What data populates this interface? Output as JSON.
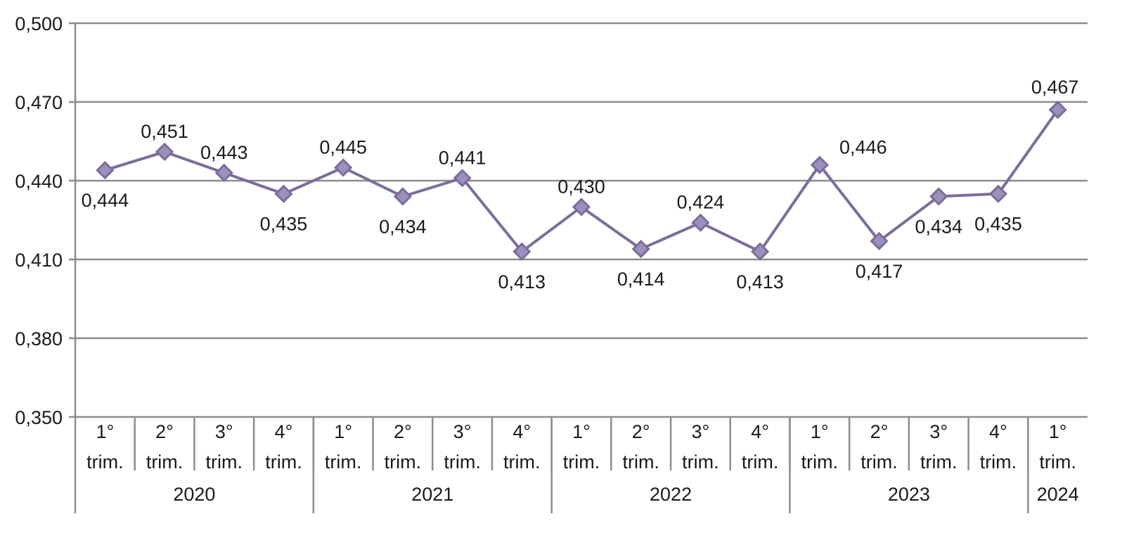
{
  "chart_data": {
    "type": "line",
    "y_ticks": [
      "0,350",
      "0,380",
      "0,410",
      "0,440",
      "0,470",
      "0,500"
    ],
    "ylim": [
      0.35,
      0.5
    ],
    "grid": true,
    "legend": "none",
    "line_color": "#7c6d9a",
    "marker_fill": "#9d8fbd",
    "categories": [
      {
        "q_num": "1°",
        "q_word": "trim."
      },
      {
        "q_num": "2°",
        "q_word": "trim."
      },
      {
        "q_num": "3°",
        "q_word": "trim."
      },
      {
        "q_num": "4°",
        "q_word": "trim."
      },
      {
        "q_num": "1°",
        "q_word": "trim."
      },
      {
        "q_num": "2°",
        "q_word": "trim."
      },
      {
        "q_num": "3°",
        "q_word": "trim."
      },
      {
        "q_num": "4°",
        "q_word": "trim."
      },
      {
        "q_num": "1°",
        "q_word": "trim."
      },
      {
        "q_num": "2°",
        "q_word": "trim."
      },
      {
        "q_num": "3°",
        "q_word": "trim."
      },
      {
        "q_num": "4°",
        "q_word": "trim."
      },
      {
        "q_num": "1°",
        "q_word": "trim."
      },
      {
        "q_num": "2°",
        "q_word": "trim."
      },
      {
        "q_num": "3°",
        "q_word": "trim."
      },
      {
        "q_num": "4°",
        "q_word": "trim."
      },
      {
        "q_num": "1°",
        "q_word": "trim."
      }
    ],
    "years": [
      {
        "label": "2020",
        "span": 4
      },
      {
        "label": "2021",
        "span": 4
      },
      {
        "label": "2022",
        "span": 4
      },
      {
        "label": "2023",
        "span": 4
      },
      {
        "label": "2024",
        "span": 1
      }
    ],
    "values": [
      0.444,
      0.451,
      0.443,
      0.435,
      0.445,
      0.434,
      0.441,
      0.413,
      0.43,
      0.414,
      0.424,
      0.413,
      0.446,
      0.417,
      0.434,
      0.435,
      0.467
    ],
    "value_labels": [
      "0,444",
      "0,451",
      "0,443",
      "0,435",
      "0,445",
      "0,434",
      "0,441",
      "0,413",
      "0,430",
      "0,414",
      "0,424",
      "0,413",
      "0,446",
      "0,417",
      "0,434",
      "0,435",
      "0,467"
    ],
    "label_positions": [
      "below",
      "above",
      "above",
      "below",
      "above",
      "below",
      "above",
      "below",
      "above",
      "below",
      "above",
      "below",
      "above",
      "below",
      "below",
      "below",
      "above"
    ]
  }
}
